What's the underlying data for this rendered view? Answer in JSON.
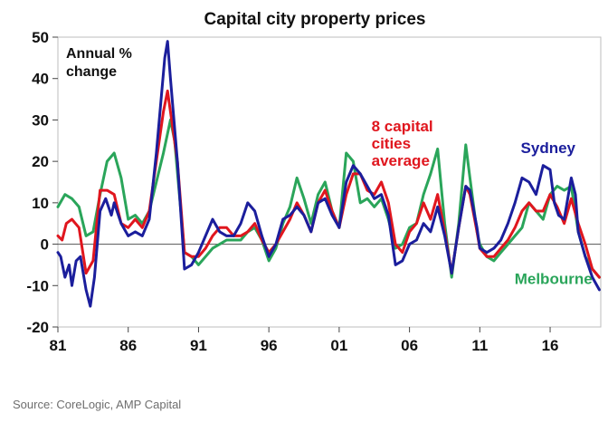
{
  "chart_data": {
    "type": "line",
    "title": "Capital city property prices",
    "y_unit_label_line1": "Annual %",
    "y_unit_label_line2": "change",
    "ylim": [
      -20,
      50
    ],
    "yticks": [
      -20,
      -10,
      0,
      10,
      20,
      30,
      40,
      50
    ],
    "xlim": [
      1981,
      2019.6
    ],
    "xticks": [
      {
        "year": 1981,
        "label": "81"
      },
      {
        "year": 1986,
        "label": "86"
      },
      {
        "year": 1991,
        "label": "91"
      },
      {
        "year": 1996,
        "label": "96"
      },
      {
        "year": 2001,
        "label": "01"
      },
      {
        "year": 2006,
        "label": "06"
      },
      {
        "year": 2011,
        "label": "11"
      },
      {
        "year": 2016,
        "label": "16"
      }
    ],
    "zero_line": true,
    "grid": false,
    "series": [
      {
        "name": "Melbourne",
        "color": "#2aa55a",
        "points": [
          [
            1981,
            9
          ],
          [
            1981.5,
            12
          ],
          [
            1982,
            11
          ],
          [
            1982.5,
            9
          ],
          [
            1983,
            2
          ],
          [
            1983.5,
            3
          ],
          [
            1984,
            12
          ],
          [
            1984.5,
            20
          ],
          [
            1985,
            22
          ],
          [
            1985.5,
            16
          ],
          [
            1986,
            6
          ],
          [
            1986.5,
            7
          ],
          [
            1987,
            5
          ],
          [
            1987.5,
            8
          ],
          [
            1988,
            15
          ],
          [
            1988.5,
            22
          ],
          [
            1989,
            30
          ],
          [
            1989.3,
            25
          ],
          [
            1990,
            -2
          ],
          [
            1990.5,
            -3
          ],
          [
            1991,
            -5
          ],
          [
            1991.5,
            -3
          ],
          [
            1992,
            -1
          ],
          [
            1992.5,
            0
          ],
          [
            1993,
            1
          ],
          [
            1993.5,
            1
          ],
          [
            1994,
            1
          ],
          [
            1994.5,
            3
          ],
          [
            1995,
            4
          ],
          [
            1995.5,
            1
          ],
          [
            1996,
            -4
          ],
          [
            1996.5,
            -1
          ],
          [
            1997,
            5
          ],
          [
            1997.5,
            9
          ],
          [
            1998,
            16
          ],
          [
            1998.5,
            11
          ],
          [
            1999,
            5
          ],
          [
            1999.5,
            12
          ],
          [
            2000,
            15
          ],
          [
            2000.5,
            8
          ],
          [
            2001,
            4
          ],
          [
            2001.5,
            22
          ],
          [
            2002,
            20
          ],
          [
            2002.5,
            10
          ],
          [
            2003,
            11
          ],
          [
            2003.5,
            9
          ],
          [
            2004,
            11
          ],
          [
            2004.5,
            6
          ],
          [
            2005,
            -1
          ],
          [
            2005.5,
            0
          ],
          [
            2006,
            4
          ],
          [
            2006.5,
            5
          ],
          [
            2007,
            12
          ],
          [
            2007.5,
            17
          ],
          [
            2008,
            23
          ],
          [
            2008.5,
            5
          ],
          [
            2009,
            -8
          ],
          [
            2009.5,
            5
          ],
          [
            2010,
            24
          ],
          [
            2010.3,
            16
          ],
          [
            2010.8,
            3
          ],
          [
            2011,
            0
          ],
          [
            2011.5,
            -3
          ],
          [
            2012,
            -4
          ],
          [
            2012.5,
            -2
          ],
          [
            2013,
            0
          ],
          [
            2013.5,
            2
          ],
          [
            2014,
            4
          ],
          [
            2014.5,
            10
          ],
          [
            2015,
            8
          ],
          [
            2015.5,
            6
          ],
          [
            2016,
            12
          ],
          [
            2016.5,
            14
          ],
          [
            2017,
            13
          ],
          [
            2017.5,
            14
          ],
          [
            2018,
            3
          ],
          [
            2018.5,
            -3
          ],
          [
            2019,
            -6
          ],
          [
            2019.5,
            -8
          ]
        ]
      },
      {
        "name": "8 capital cities average",
        "color": "#e0161e",
        "points": [
          [
            1981,
            2
          ],
          [
            1981.3,
            1
          ],
          [
            1981.6,
            5
          ],
          [
            1982,
            6
          ],
          [
            1982.5,
            4
          ],
          [
            1983,
            -7
          ],
          [
            1983.5,
            -4
          ],
          [
            1984,
            13
          ],
          [
            1984.5,
            13
          ],
          [
            1985,
            12
          ],
          [
            1985.5,
            5
          ],
          [
            1986,
            4
          ],
          [
            1986.5,
            6
          ],
          [
            1987,
            4
          ],
          [
            1987.5,
            8
          ],
          [
            1988,
            20
          ],
          [
            1988.5,
            32
          ],
          [
            1988.8,
            37
          ],
          [
            1989,
            32
          ],
          [
            1989.5,
            20
          ],
          [
            1990,
            -2
          ],
          [
            1990.5,
            -3
          ],
          [
            1991,
            -3
          ],
          [
            1991.5,
            -1
          ],
          [
            1992,
            2
          ],
          [
            1992.5,
            4
          ],
          [
            1993,
            4
          ],
          [
            1993.5,
            2
          ],
          [
            1994,
            2
          ],
          [
            1994.5,
            3
          ],
          [
            1995,
            5
          ],
          [
            1995.5,
            1
          ],
          [
            1996,
            -2
          ],
          [
            1996.5,
            0
          ],
          [
            1997,
            3
          ],
          [
            1997.5,
            6
          ],
          [
            1998,
            10
          ],
          [
            1998.5,
            7
          ],
          [
            1999,
            3
          ],
          [
            1999.5,
            10
          ],
          [
            2000,
            13
          ],
          [
            2000.5,
            8
          ],
          [
            2001,
            4
          ],
          [
            2001.5,
            12
          ],
          [
            2002,
            17
          ],
          [
            2002.5,
            17
          ],
          [
            2003,
            13
          ],
          [
            2003.5,
            12
          ],
          [
            2004,
            15
          ],
          [
            2004.5,
            10
          ],
          [
            2005,
            0
          ],
          [
            2005.5,
            -2
          ],
          [
            2006,
            3
          ],
          [
            2006.5,
            5
          ],
          [
            2007,
            10
          ],
          [
            2007.5,
            6
          ],
          [
            2008,
            12
          ],
          [
            2008.5,
            3
          ],
          [
            2009,
            -7
          ],
          [
            2009.5,
            4
          ],
          [
            2010,
            14
          ],
          [
            2010.3,
            12
          ],
          [
            2010.8,
            3
          ],
          [
            2011,
            -1
          ],
          [
            2011.5,
            -3
          ],
          [
            2012,
            -3
          ],
          [
            2012.5,
            -1
          ],
          [
            2013,
            1
          ],
          [
            2013.5,
            4
          ],
          [
            2014,
            8
          ],
          [
            2014.5,
            10
          ],
          [
            2015,
            8
          ],
          [
            2015.5,
            8
          ],
          [
            2016,
            12
          ],
          [
            2016.5,
            9
          ],
          [
            2017,
            5
          ],
          [
            2017.5,
            11
          ],
          [
            2018,
            5
          ],
          [
            2018.5,
            0
          ],
          [
            2019,
            -6
          ],
          [
            2019.5,
            -8
          ]
        ]
      },
      {
        "name": "Sydney",
        "color": "#1b1e9c",
        "points": [
          [
            1981,
            -2
          ],
          [
            1981.2,
            -3
          ],
          [
            1981.5,
            -8
          ],
          [
            1981.8,
            -5
          ],
          [
            1982,
            -10
          ],
          [
            1982.3,
            -4
          ],
          [
            1982.6,
            -3
          ],
          [
            1983,
            -11
          ],
          [
            1983.3,
            -15
          ],
          [
            1983.6,
            -8
          ],
          [
            1984,
            8
          ],
          [
            1984.4,
            11
          ],
          [
            1984.8,
            7
          ],
          [
            1985,
            10
          ],
          [
            1985.5,
            5
          ],
          [
            1986,
            2
          ],
          [
            1986.5,
            3
          ],
          [
            1987,
            2
          ],
          [
            1987.5,
            6
          ],
          [
            1988,
            22
          ],
          [
            1988.6,
            45
          ],
          [
            1988.8,
            49
          ],
          [
            1989,
            40
          ],
          [
            1989.5,
            20
          ],
          [
            1990,
            -6
          ],
          [
            1990.5,
            -5
          ],
          [
            1991,
            -2
          ],
          [
            1991.5,
            2
          ],
          [
            1992,
            6
          ],
          [
            1992.5,
            3
          ],
          [
            1993,
            2
          ],
          [
            1993.5,
            2
          ],
          [
            1994,
            5
          ],
          [
            1994.5,
            10
          ],
          [
            1995,
            8
          ],
          [
            1995.5,
            2
          ],
          [
            1996,
            -3
          ],
          [
            1996.5,
            0
          ],
          [
            1997,
            6
          ],
          [
            1997.5,
            7
          ],
          [
            1998,
            9
          ],
          [
            1998.5,
            7
          ],
          [
            1999,
            3
          ],
          [
            1999.5,
            10
          ],
          [
            2000,
            11
          ],
          [
            2000.5,
            7
          ],
          [
            2001,
            4
          ],
          [
            2001.5,
            15
          ],
          [
            2002,
            19
          ],
          [
            2002.5,
            17
          ],
          [
            2003,
            14
          ],
          [
            2003.5,
            11
          ],
          [
            2004,
            12
          ],
          [
            2004.5,
            7
          ],
          [
            2005,
            -5
          ],
          [
            2005.5,
            -4
          ],
          [
            2006,
            0
          ],
          [
            2006.5,
            1
          ],
          [
            2007,
            5
          ],
          [
            2007.5,
            3
          ],
          [
            2008,
            9
          ],
          [
            2008.5,
            2
          ],
          [
            2009,
            -7
          ],
          [
            2009.5,
            4
          ],
          [
            2010,
            14
          ],
          [
            2010.3,
            13
          ],
          [
            2010.8,
            4
          ],
          [
            2011,
            -1
          ],
          [
            2011.5,
            -2
          ],
          [
            2012,
            -1
          ],
          [
            2012.5,
            1
          ],
          [
            2013,
            5
          ],
          [
            2013.5,
            10
          ],
          [
            2014,
            16
          ],
          [
            2014.5,
            15
          ],
          [
            2015,
            12
          ],
          [
            2015.5,
            19
          ],
          [
            2016,
            18
          ],
          [
            2016.3,
            10
          ],
          [
            2016.6,
            7
          ],
          [
            2017,
            6
          ],
          [
            2017.5,
            16
          ],
          [
            2017.8,
            12
          ],
          [
            2018,
            3
          ],
          [
            2018.5,
            -3
          ],
          [
            2019,
            -8
          ],
          [
            2019.5,
            -11
          ]
        ]
      }
    ],
    "labels": [
      {
        "series": "Sydney",
        "lines": [
          "Sydney"
        ],
        "color": "#1b1e9c",
        "anchor_x": 2017.8,
        "anchor_y": 22,
        "align": "end"
      },
      {
        "series": "8 capital cities average",
        "lines": [
          "8 capital",
          "cities",
          "average"
        ],
        "color": "#e0161e",
        "anchor_x": 2003.3,
        "anchor_y": 27.2,
        "align": "start"
      },
      {
        "series": "Melbourne",
        "lines": [
          "Melbourne"
        ],
        "color": "#2aa55a",
        "anchor_x": 2019,
        "anchor_y": -9.6,
        "align": "end"
      }
    ]
  },
  "footer": {
    "source_text": "Source: CoreLogic, AMP Capital"
  }
}
